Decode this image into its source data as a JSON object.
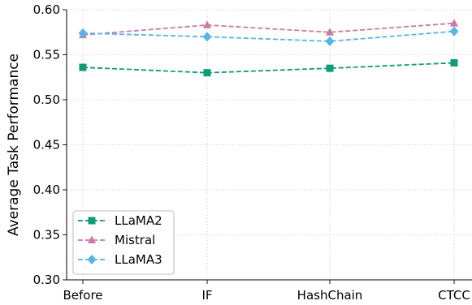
{
  "chart_data": {
    "type": "line",
    "title": "",
    "xlabel": "",
    "ylabel": "Average Task Performance",
    "categories": [
      "Before",
      "IF",
      "HashChain",
      "CTCC"
    ],
    "ylim": [
      0.3,
      0.6
    ],
    "yticks": [
      "0.30",
      "0.35",
      "0.40",
      "0.45",
      "0.50",
      "0.55",
      "0.60"
    ],
    "grid": true,
    "legend_position": "lower-left",
    "series": [
      {
        "name": "LLaMA2",
        "values": [
          0.536,
          0.53,
          0.535,
          0.541
        ],
        "color": "#0f9b74",
        "marker": "square"
      },
      {
        "name": "Mistral",
        "values": [
          0.572,
          0.583,
          0.575,
          0.585
        ],
        "color": "#cc79a7",
        "marker": "triangle"
      },
      {
        "name": "LLaMA3",
        "values": [
          0.574,
          0.57,
          0.565,
          0.576
        ],
        "color": "#56b4e9",
        "marker": "diamond"
      }
    ]
  }
}
